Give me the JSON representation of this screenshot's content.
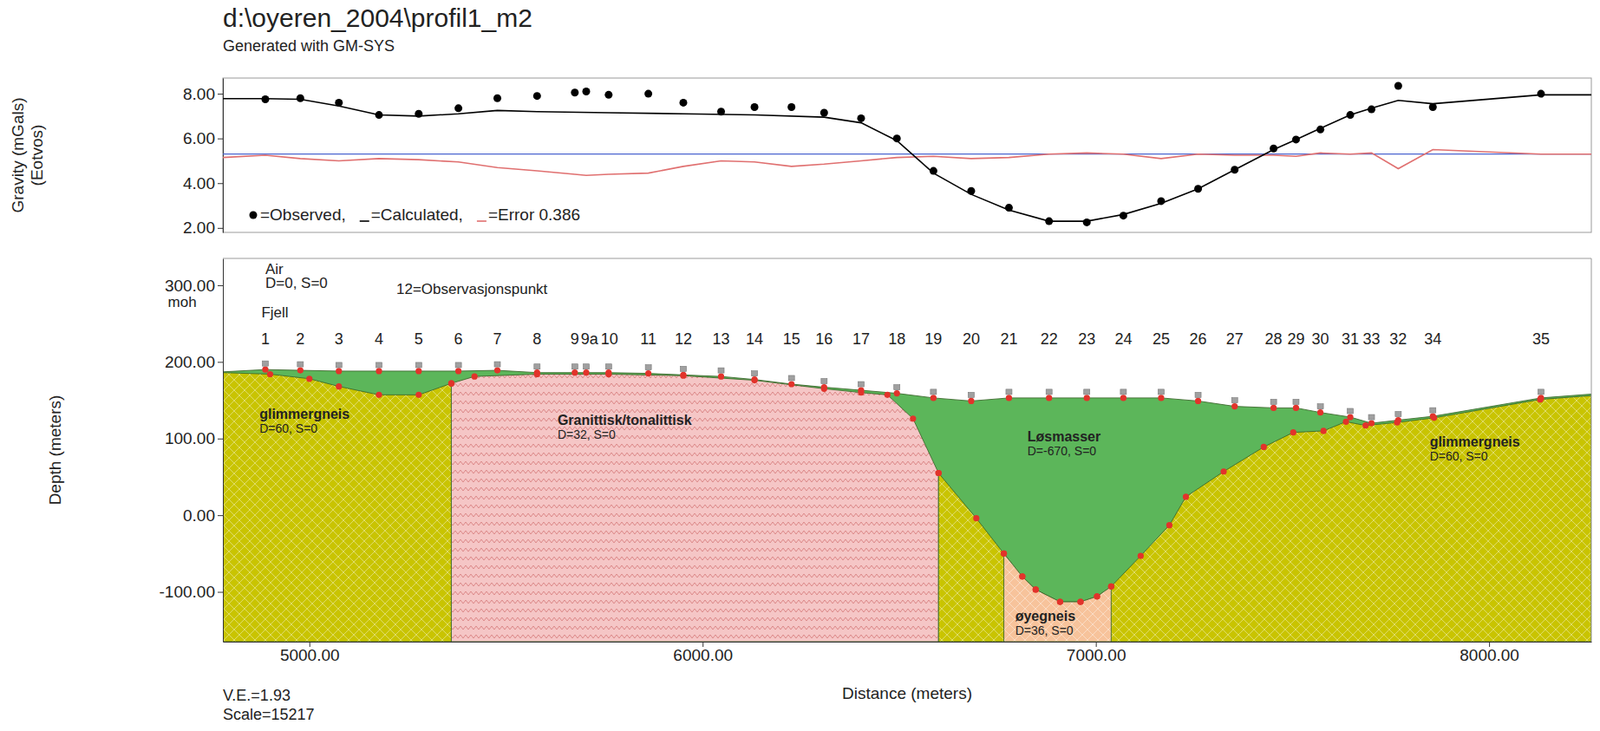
{
  "chart_data": [
    {
      "type": "line",
      "title": "d:\\oyeren_2004\\profil1_m2",
      "subtitle": "Generated with GM-SYS",
      "ylabel": [
        "Gravity (mGals)",
        "(Eotvos)"
      ],
      "xlim": [
        4780,
        8260
      ],
      "ylim": [
        1.8,
        8.7
      ],
      "yticks": [
        {
          "value": 2,
          "label": "2.00"
        },
        {
          "value": 4,
          "label": "4.00"
        },
        {
          "value": 6,
          "label": "6.00"
        },
        {
          "value": 8,
          "label": "8.00"
        }
      ],
      "tick_labels": "y",
      "legend": "lower left",
      "series": [
        {
          "name": "=Observed,",
          "type": "scatter",
          "marker": "circle",
          "color": "#000000",
          "x": [
            4888,
            4977,
            5075,
            5177,
            5278,
            5379,
            5478,
            5579,
            5675,
            5704,
            5761,
            5862,
            5951,
            6047,
            6132,
            6226,
            6309,
            6403,
            6494,
            6587,
            6683,
            6779,
            6881,
            6977,
            7070,
            7166,
            7260,
            7353,
            7452,
            7509,
            7571,
            7647,
            7701,
            7769,
            7857,
            8132
          ],
          "values": [
            7.75,
            7.8,
            7.6,
            7.05,
            7.1,
            7.35,
            7.8,
            7.9,
            8.05,
            8.1,
            7.95,
            8.0,
            7.6,
            7.2,
            7.4,
            7.4,
            7.15,
            6.9,
            6.0,
            4.55,
            3.65,
            2.9,
            2.3,
            2.25,
            2.55,
            3.2,
            3.75,
            4.6,
            5.55,
            5.95,
            6.4,
            7.05,
            7.3,
            8.35,
            7.4,
            8.0
          ]
        },
        {
          "name": "=Calculated,",
          "type": "line",
          "color": "#000000",
          "x": [
            4780,
            4888,
            4977,
            5075,
            5177,
            5278,
            5379,
            5478,
            5579,
            5761,
            5951,
            6132,
            6309,
            6403,
            6494,
            6587,
            6683,
            6779,
            6881,
            6977,
            7070,
            7166,
            7260,
            7353,
            7452,
            7509,
            7571,
            7647,
            7701,
            7769,
            7857,
            8132,
            8260
          ],
          "values": [
            7.78,
            7.78,
            7.75,
            7.45,
            7.05,
            7.0,
            7.1,
            7.25,
            7.2,
            7.15,
            7.1,
            7.05,
            6.95,
            6.7,
            5.9,
            4.45,
            3.5,
            2.8,
            2.3,
            2.3,
            2.6,
            3.1,
            3.75,
            4.6,
            5.5,
            5.95,
            6.45,
            7.05,
            7.35,
            7.7,
            7.55,
            7.95,
            7.95
          ]
        },
        {
          "name": "=Error 0.386",
          "type": "line",
          "color": "#e07070",
          "x": [
            4780,
            4888,
            4977,
            5075,
            5177,
            5278,
            5379,
            5478,
            5579,
            5675,
            5704,
            5761,
            5862,
            5951,
            6047,
            6132,
            6226,
            6309,
            6403,
            6494,
            6587,
            6683,
            6779,
            6881,
            6977,
            7070,
            7166,
            7260,
            7353,
            7452,
            7509,
            7571,
            7647,
            7701,
            7769,
            7857,
            8132,
            8260
          ],
          "values": [
            5.15,
            5.25,
            5.1,
            5.0,
            5.1,
            5.05,
            4.95,
            4.7,
            4.55,
            4.4,
            4.35,
            4.4,
            4.45,
            4.75,
            5.0,
            4.95,
            4.75,
            4.85,
            5.0,
            5.15,
            5.2,
            5.1,
            5.15,
            5.3,
            5.35,
            5.3,
            5.1,
            5.3,
            5.25,
            5.25,
            5.2,
            5.35,
            5.3,
            5.35,
            4.65,
            5.5,
            5.3,
            5.3
          ]
        },
        {
          "type": "line",
          "color": "#4a64d0",
          "x": [
            4780,
            8260
          ],
          "values": [
            5.3,
            5.3
          ]
        }
      ]
    },
    {
      "type": "polygon",
      "xlabel": "Distance (meters)",
      "ylabel": "Depth (meters)",
      "xlim": [
        4780,
        8260
      ],
      "ylim": [
        -165,
        335
      ],
      "xticks": [
        {
          "value": 5000,
          "label": "5000.00"
        },
        {
          "value": 6000,
          "label": "6000.00"
        },
        {
          "value": 7000,
          "label": "7000.00"
        },
        {
          "value": 8000,
          "label": "8000.00"
        }
      ],
      "yticks": [
        {
          "value": -100,
          "label": "-100.00"
        },
        {
          "value": 0,
          "label": "0.00"
        },
        {
          "value": 100,
          "label": "100.00"
        },
        {
          "value": 200,
          "label": "200.00"
        },
        {
          "value": 300,
          "label": "300.00"
        }
      ],
      "stations": {
        "labels": [
          "1",
          "2",
          "3",
          "4",
          "5",
          "6",
          "7",
          "8",
          "9",
          "9a",
          "10",
          "11",
          "12",
          "13",
          "14",
          "15",
          "16",
          "17",
          "18",
          "19",
          "20",
          "21",
          "22",
          "23",
          "24",
          "25",
          "26",
          "27",
          "28",
          "29",
          "30",
          "31",
          "33",
          "32",
          "34",
          "35"
        ],
        "x": [
          4888,
          4977,
          5075,
          5177,
          5278,
          5379,
          5478,
          5579,
          5675,
          5704,
          5761,
          5862,
          5951,
          6047,
          6132,
          6226,
          6309,
          6403,
          6494,
          6587,
          6683,
          6779,
          6881,
          6977,
          7070,
          7166,
          7260,
          7353,
          7452,
          7509,
          7571,
          7647,
          7701,
          7769,
          7857,
          8132
        ],
        "values": [
          190,
          189,
          188,
          188,
          188,
          188,
          189,
          186,
          186,
          186,
          186,
          185,
          183,
          181,
          177,
          171,
          167,
          163,
          159,
          153,
          149,
          153,
          153,
          153,
          153,
          153,
          149,
          142,
          140,
          140,
          134,
          128,
          120,
          124,
          129,
          153
        ]
      },
      "bodies": [
        {
          "name": "Løsmasser",
          "label": "D=-670, S=0",
          "color": "#5cb65a",
          "line_style": "solid",
          "label_at": [
            6826,
            96
          ],
          "x": [
            4780,
            4888,
            4977,
            5075,
            5177,
            5278,
            5379,
            5478,
            5579,
            5675,
            5704,
            5761,
            5862,
            5951,
            6047,
            6132,
            6226,
            6309,
            6403,
            6494,
            6587,
            6683,
            6779,
            6881,
            6977,
            7070,
            7166,
            7260,
            7353,
            7452,
            7509,
            7571,
            7647,
            7701,
            7769,
            7857,
            8132,
            8260,
            8260,
            4780
          ],
          "values": [
            187,
            190,
            189,
            188,
            188,
            188,
            188,
            189,
            186,
            186,
            186,
            186,
            185,
            183,
            181,
            177,
            171,
            167,
            163,
            159,
            153,
            149,
            153,
            153,
            153,
            153,
            153,
            149,
            142,
            140,
            140,
            134,
            128,
            120,
            124,
            129,
            153,
            158,
            -165,
            -165
          ]
        },
        {
          "name": "glimmergneis",
          "label": "D=60, S=0",
          "color": "#c9c400",
          "line_style": "crosshatch",
          "label_at": [
            4873,
            126
          ],
          "x": [
            4780,
            4900,
            5000,
            5075,
            5177,
            5278,
            5361,
            5361,
            4780
          ],
          "values": [
            186,
            184,
            178,
            168,
            157,
            157,
            172,
            -165,
            -165
          ]
        },
        {
          "name": "Granittisk/tonalittisk",
          "label": "D=32, S=0",
          "color": "#f5c6c6",
          "line_style": "zigzag",
          "label_at": [
            5631,
            118
          ],
          "x": [
            5361,
            5420,
            5579,
            5761,
            5951,
            6132,
            6309,
            6403,
            6470,
            6535,
            6600,
            6600,
            5361
          ],
          "values": [
            172,
            181,
            184,
            184,
            182,
            176,
            165,
            160,
            157,
            126,
            55,
            -165,
            -165
          ]
        },
        {
          "name": "glimmergneis",
          "label": "D=60, S=0",
          "color": "#c9c400",
          "line_style": "crosshatch",
          "label_at": [
            7849,
            90
          ],
          "x": [
            6600,
            6696,
            6766,
            6813,
            6847,
            6909,
            6961,
            7003,
            7039,
            7114,
            7187,
            7229,
            7325,
            7427,
            7502,
            7579,
            7636,
            7686,
            7766,
            7860,
            8130,
            8260,
            8260,
            6600
          ],
          "values": [
            55,
            -4,
            -50,
            -80,
            -97,
            -113,
            -113,
            -106,
            -93,
            -53,
            -13,
            24,
            57,
            89,
            108,
            110,
            122,
            117,
            121,
            127,
            151,
            156,
            -165,
            -165
          ]
        },
        {
          "name": "øyegneis",
          "label": "D=36, S=0",
          "color": "#f7c39b",
          "line_style": "crosshatch",
          "label_at": [
            6795,
            -138
          ],
          "x": [
            6766,
            6813,
            6847,
            6909,
            6961,
            7003,
            7039,
            7039,
            6766
          ],
          "values": [
            -50,
            -80,
            -97,
            -113,
            -113,
            -106,
            -93,
            -165,
            -165
          ]
        }
      ],
      "annotations": [
        {
          "text": "Air",
          "x": 4888,
          "y": 315
        },
        {
          "text": "D=0, S=0",
          "x": 4888,
          "y": 296
        },
        {
          "text": "12=Observasjonspunkt",
          "x": 5221,
          "y": 289
        },
        {
          "text": "Fjell",
          "x": 4878,
          "y": 258
        },
        {
          "text": "moh",
          "x": 4640,
          "y": 272
        }
      ],
      "footer": [
        "V.E.=1.93",
        "Scale=15217"
      ]
    }
  ]
}
